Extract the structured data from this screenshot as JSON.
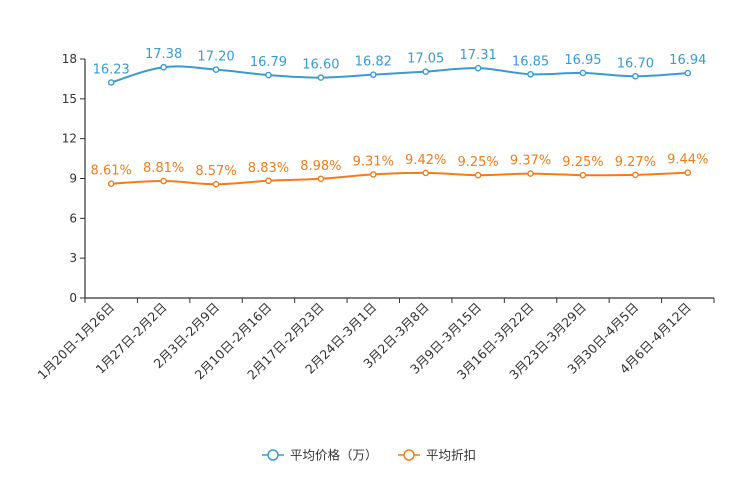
{
  "chart_data": {
    "type": "line",
    "title": "",
    "xlabel": "",
    "ylabel": "",
    "ylim": [
      0,
      18
    ],
    "yticks": [
      0,
      3,
      6,
      9,
      12,
      15,
      18
    ],
    "grid": false,
    "legend_position": "bottom-center",
    "categories": [
      "1月20日-1月26日",
      "1月27日-2月2日",
      "2月3日-2月9日",
      "2月10日-2月16日",
      "2月17日-2月23日",
      "2月24日-3月1日",
      "3月2日-3月8日",
      "3月9日-3月15日",
      "3月16日-3月22日",
      "3月23日-3月29日",
      "3月30日-4月5日",
      "4月6日-4月12日"
    ],
    "series": [
      {
        "name": "平均价格（万）",
        "color": "#3a9bd0",
        "values": [
          16.23,
          17.38,
          17.2,
          16.79,
          16.6,
          16.82,
          17.05,
          17.31,
          16.85,
          16.95,
          16.7,
          16.94
        ],
        "labels": [
          "16.23",
          "17.38",
          "17.20",
          "16.79",
          "16.60",
          "16.82",
          "17.05",
          "17.31",
          "16.85",
          "16.95",
          "16.70",
          "16.94"
        ]
      },
      {
        "name": "平均折扣",
        "color": "#f07d1a",
        "values": [
          8.61,
          8.81,
          8.57,
          8.83,
          8.98,
          9.31,
          9.42,
          9.25,
          9.37,
          9.25,
          9.27,
          9.44
        ],
        "labels": [
          "8.61%",
          "8.81%",
          "8.57%",
          "8.83%",
          "8.98%",
          "9.31%",
          "9.42%",
          "9.25%",
          "9.37%",
          "9.25%",
          "9.27%",
          "9.44%"
        ]
      }
    ]
  }
}
